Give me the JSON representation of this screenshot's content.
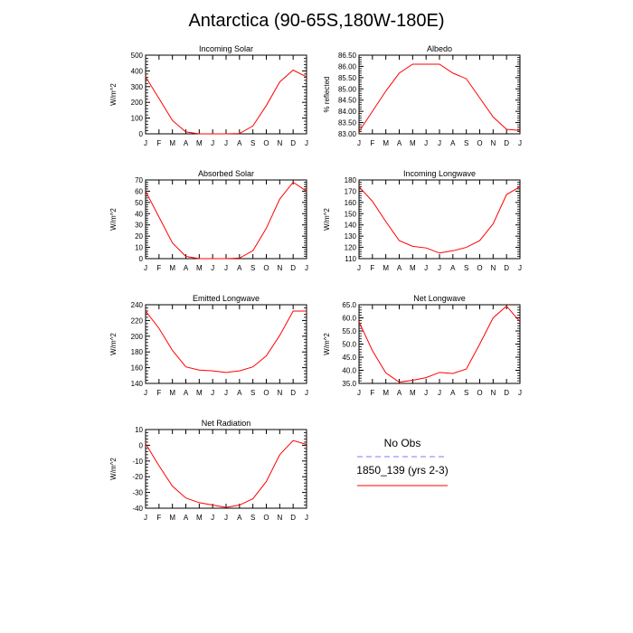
{
  "page": {
    "title": "Antarctica (90-65S,180W-180E)"
  },
  "legend": {
    "entries": [
      {
        "label": "No Obs",
        "color": "#7b7bff",
        "dashed": true
      },
      {
        "label": "1850_139 (yrs 2-3)",
        "color": "#ff0000",
        "dashed": false
      }
    ]
  },
  "chart_data": [
    {
      "type": "line",
      "title": "Incoming Solar",
      "ylabel": "W/m^2",
      "categories": [
        "J",
        "F",
        "M",
        "A",
        "M",
        "J",
        "J",
        "A",
        "S",
        "O",
        "N",
        "D",
        "J"
      ],
      "ylim": [
        0,
        500
      ],
      "yticks": [
        "0",
        "100",
        "200",
        "300",
        "400",
        "500"
      ],
      "series": [
        {
          "values": [
            362,
            225,
            85,
            12,
            0,
            0,
            0,
            2,
            50,
            180,
            330,
            405,
            362
          ],
          "color": "#ff0000"
        }
      ]
    },
    {
      "type": "line",
      "title": "Albedo",
      "ylabel": "% reflected",
      "categories": [
        "J",
        "F",
        "M",
        "A",
        "M",
        "J",
        "J",
        "A",
        "S",
        "O",
        "N",
        "D",
        "J"
      ],
      "ylim": [
        83.0,
        86.5
      ],
      "yticks": [
        "83.00",
        "83.50",
        "84.00",
        "84.50",
        "85.00",
        "85.50",
        "86.00",
        "86.50"
      ],
      "series": [
        {
          "values": [
            83.1,
            84.0,
            84.9,
            85.7,
            86.1,
            86.1,
            86.1,
            85.7,
            85.45,
            84.6,
            83.75,
            83.2,
            83.15
          ],
          "color": "#ff0000"
        }
      ]
    },
    {
      "type": "line",
      "title": "Absorbed Solar",
      "ylabel": "W/m^2",
      "categories": [
        "J",
        "F",
        "M",
        "A",
        "M",
        "J",
        "J",
        "A",
        "S",
        "O",
        "N",
        "D",
        "J"
      ],
      "ylim": [
        0,
        70
      ],
      "yticks": [
        "0",
        "10",
        "20",
        "30",
        "40",
        "50",
        "60",
        "70"
      ],
      "series": [
        {
          "values": [
            60,
            37,
            14,
            2,
            0,
            0,
            0,
            0.5,
            7,
            27,
            53,
            68,
            60
          ],
          "color": "#ff0000"
        }
      ]
    },
    {
      "type": "line",
      "title": "Incoming Longwave",
      "ylabel": "W/m^2",
      "categories": [
        "J",
        "F",
        "M",
        "A",
        "M",
        "J",
        "J",
        "A",
        "S",
        "O",
        "N",
        "D",
        "J"
      ],
      "ylim": [
        110,
        180
      ],
      "yticks": [
        "110",
        "120",
        "130",
        "140",
        "150",
        "160",
        "170",
        "180"
      ],
      "series": [
        {
          "values": [
            174,
            161,
            143,
            126,
            121,
            119.5,
            115,
            117,
            120,
            126,
            141,
            167,
            174
          ],
          "color": "#ff0000"
        }
      ]
    },
    {
      "type": "line",
      "title": "Emitted Longwave",
      "ylabel": "W/m^2",
      "categories": [
        "J",
        "F",
        "M",
        "A",
        "M",
        "J",
        "J",
        "A",
        "S",
        "O",
        "N",
        "D",
        "J"
      ],
      "ylim": [
        140,
        240
      ],
      "yticks": [
        "140",
        "160",
        "180",
        "200",
        "220",
        "240"
      ],
      "series": [
        {
          "values": [
            232,
            210,
            182,
            161,
            157,
            156,
            154,
            156,
            161,
            175,
            201,
            232,
            232
          ],
          "color": "#ff0000"
        }
      ]
    },
    {
      "type": "line",
      "title": "Net Longwave",
      "ylabel": "W/m^2",
      "categories": [
        "J",
        "F",
        "M",
        "A",
        "M",
        "J",
        "J",
        "A",
        "S",
        "O",
        "N",
        "D",
        "J"
      ],
      "ylim": [
        35,
        65
      ],
      "yticks": [
        "35.0",
        "40.0",
        "45.0",
        "50.0",
        "55.0",
        "60.0",
        "65.0"
      ],
      "series": [
        {
          "values": [
            58.5,
            47.5,
            39,
            35.5,
            36.2,
            37.2,
            39.2,
            38.8,
            40.5,
            50,
            60,
            64.5,
            58.5
          ],
          "color": "#ff0000"
        }
      ]
    },
    {
      "type": "line",
      "title": "Net Radiation",
      "ylabel": "W/m^2",
      "categories": [
        "J",
        "F",
        "M",
        "A",
        "M",
        "J",
        "J",
        "A",
        "S",
        "O",
        "N",
        "D",
        "J"
      ],
      "ylim": [
        -40,
        10
      ],
      "yticks": [
        "-40",
        "-30",
        "-20",
        "-10",
        "0",
        "10"
      ],
      "series": [
        {
          "values": [
            1,
            -13,
            -26,
            -33.5,
            -36.5,
            -38,
            -39.5,
            -38,
            -34,
            -23,
            -6,
            3,
            0.5
          ],
          "color": "#ff0000"
        }
      ]
    }
  ]
}
